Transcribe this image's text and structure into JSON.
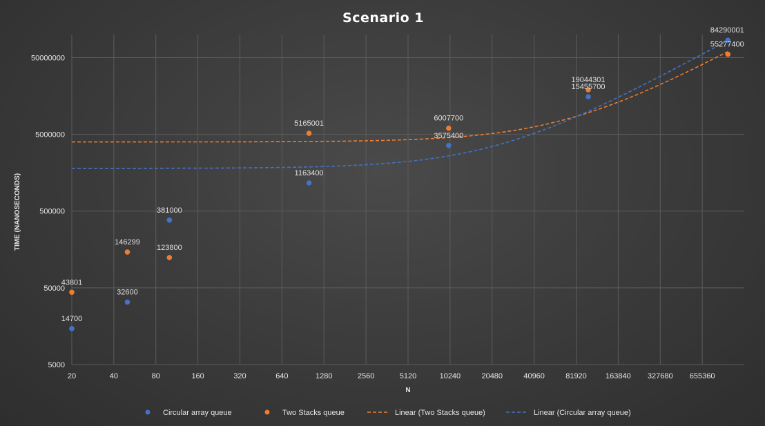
{
  "chart_data": {
    "type": "scatter",
    "title": "Scenario 1",
    "xlabel": "N",
    "ylabel": "TIME (NANOSECONDS)",
    "x_scale": "log2",
    "y_scale": "log10",
    "xlim": [
      20,
      1310720
    ],
    "ylim": [
      5000,
      100000000
    ],
    "x_ticks": [
      "20",
      "40",
      "80",
      "160",
      "320",
      "640",
      "1280",
      "2560",
      "5120",
      "10240",
      "20480",
      "40960",
      "81920",
      "163840",
      "327680",
      "655360"
    ],
    "y_ticks": [
      "5000",
      "50000",
      "500000",
      "5000000",
      "50000000"
    ],
    "grid": true,
    "legend_position": "bottom",
    "colors": {
      "circular": "#4472c4",
      "stacks": "#ed7d31"
    },
    "series": [
      {
        "name": "Circular array queue",
        "kind": "points",
        "color": "#4472c4",
        "x": [
          20,
          50,
          100,
          1000,
          10000,
          100000,
          1000000
        ],
        "y": [
          14700,
          32600,
          381000,
          1163400,
          3575400,
          15455700,
          84290001
        ],
        "labels": [
          "14700",
          "32600",
          "381000",
          "1163400",
          "3575400",
          "15455700",
          "84290001"
        ]
      },
      {
        "name": "Two Stacks queue",
        "kind": "points",
        "color": "#ed7d31",
        "x": [
          20,
          50,
          100,
          1000,
          10000,
          100000,
          1000000
        ],
        "y": [
          43801,
          146299,
          123800,
          5165001,
          6007700,
          19044301,
          55277400
        ],
        "labels": [
          "43801",
          "146299",
          "123800",
          "5165001",
          "6007700",
          "19044301",
          "55277400"
        ]
      },
      {
        "name": "Linear (Two Stacks queue)",
        "kind": "trendline",
        "color": "#ed7d31",
        "slope": 56.0,
        "intercept": 3979000
      },
      {
        "name": "Linear (Circular array queue)",
        "kind": "trendline",
        "color": "#4472c4",
        "slope": 81.8,
        "intercept": 1800000
      }
    ]
  }
}
